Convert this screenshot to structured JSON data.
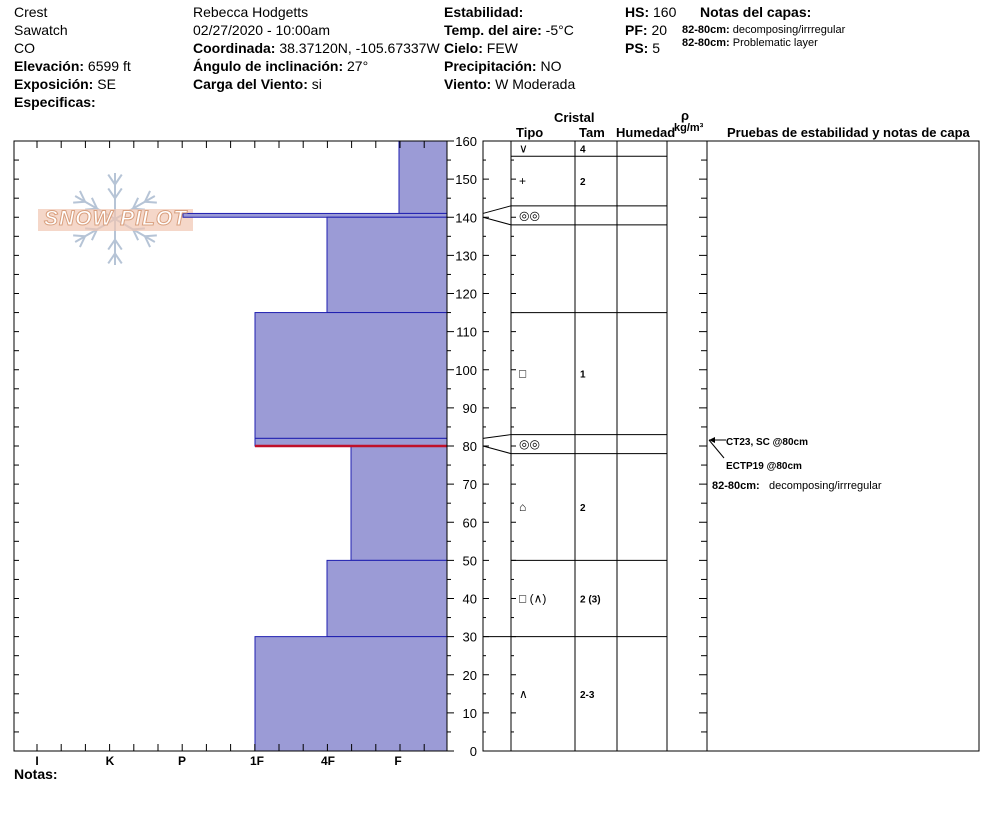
{
  "header": {
    "location": {
      "name": "Crest",
      "range": "Sawatch",
      "state": "CO",
      "elevation_label": "Elevación:",
      "elevation": "6599 ft",
      "aspect_label": "Exposición:",
      "aspect": "SE",
      "specifics_label": "Especificas:"
    },
    "observer": {
      "name": "Rebecca Hodgetts",
      "datetime": "02/27/2020 - 10:00am",
      "coord_label": "Coordinada:",
      "coord": "38.37120N, -105.67337W",
      "slope_label": "Ángulo de inclinación:",
      "slope": "27°",
      "wind_load_label": "Carga del Viento:",
      "wind_load": "si"
    },
    "conditions": {
      "stability_label": "Estabilidad:",
      "air_temp_label": "Temp. del aire:",
      "air_temp": "-5°C",
      "sky_label": "Cielo:",
      "sky": "FEW",
      "precip_label": "Precipitación:",
      "precip": "NO",
      "wind_label": "Viento:",
      "wind": "W Moderada"
    },
    "depths": {
      "hs_label": "HS:",
      "hs": "160",
      "pf_label": "PF:",
      "pf": "20",
      "ps_label": "PS:",
      "ps": "5"
    },
    "layer_notes": {
      "title": "Notas del capas:",
      "items": [
        {
          "depth": "82-80cm:",
          "text": "decomposing/irrregular"
        },
        {
          "depth": "82-80cm:",
          "text": "Problematic layer"
        }
      ]
    }
  },
  "logo_text": "SNOW PILOT",
  "columns": {
    "crystal": "Cristal",
    "type": "Tipo",
    "size": "Tam",
    "humidity": "Humedad",
    "rho": "ρ",
    "density_unit": "kg/m³",
    "tests": "Pruebas de estabilidad y notas de capa"
  },
  "notes_label": "Notas:",
  "colors": {
    "layer_fill": "#9b9bd6",
    "layer_edge": "#1f1fb0",
    "weak_layer": "#c0102a"
  },
  "chart_data": {
    "type": "snow-profile",
    "hardness_scale": [
      "I",
      "K",
      "P",
      "1F",
      "4F",
      "F"
    ],
    "y_range": [
      0,
      160
    ],
    "y_ticks": [
      0,
      10,
      20,
      30,
      40,
      50,
      60,
      70,
      80,
      90,
      100,
      110,
      120,
      130,
      140,
      150,
      160
    ],
    "layers": [
      {
        "top": 160,
        "bottom": 141,
        "hardness": "F"
      },
      {
        "top": 141,
        "bottom": 140,
        "hardness": "P"
      },
      {
        "top": 140,
        "bottom": 115,
        "hardness": "4F"
      },
      {
        "top": 115,
        "bottom": 82,
        "hardness": "1F"
      },
      {
        "top": 82,
        "bottom": 80,
        "hardness": "1F"
      },
      {
        "top": 80,
        "bottom": 50,
        "hardness": "4F+"
      },
      {
        "top": 50,
        "bottom": 30,
        "hardness": "4F"
      },
      {
        "top": 30,
        "bottom": 0,
        "hardness": "1F"
      }
    ],
    "weak_layer_depth": 80,
    "crystal_rows": [
      {
        "top": 160,
        "bottom": 156,
        "symbol": "∨",
        "size": "4"
      },
      {
        "top": 156,
        "bottom": 143,
        "symbol": "+",
        "size": "2"
      },
      {
        "top": 143,
        "bottom": 138,
        "symbol": "◎◎",
        "size": ""
      },
      {
        "top": 138,
        "bottom": 115,
        "symbol": "",
        "size": ""
      },
      {
        "top": 115,
        "bottom": 83,
        "symbol": "□",
        "size": "1"
      },
      {
        "top": 83,
        "bottom": 78,
        "symbol": "◎◎",
        "size": ""
      },
      {
        "top": 78,
        "bottom": 50,
        "symbol": "⌂",
        "size": "2"
      },
      {
        "top": 50,
        "bottom": 30,
        "symbol": "□ (∧)",
        "size": "2 (3)"
      },
      {
        "top": 30,
        "bottom": 0,
        "symbol": "∧",
        "size": "2-3"
      }
    ],
    "tests": [
      {
        "text": "CT23, SC @80cm",
        "bold": true
      },
      {
        "text": "ECTP19 @80cm",
        "bold": true
      }
    ],
    "test_note": {
      "depth": "82-80cm:",
      "text": "decomposing/irrregular"
    }
  }
}
